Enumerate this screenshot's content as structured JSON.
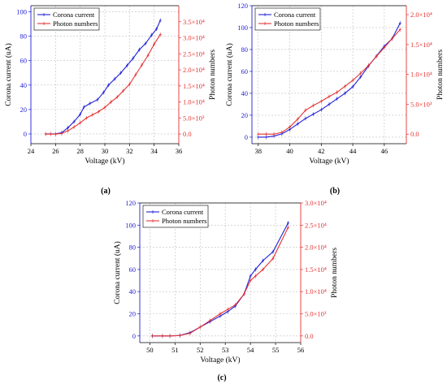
{
  "colors": {
    "current": "#1f1fd6",
    "photon": "#e53333",
    "grid": "#bfbfbf"
  },
  "chart_data": [
    {
      "type": "line",
      "caption": "(a)",
      "xlabel": "Voltage (kV)",
      "ylabel": "Corona current (uA)",
      "y2label": "Photon numbers",
      "xlim": [
        24,
        36
      ],
      "ylim": [
        -8,
        105
      ],
      "y2lim": [
        -3000,
        40000
      ],
      "xticks": [
        24,
        26,
        28,
        30,
        32,
        34,
        36
      ],
      "xtick_labels": [
        "24",
        "26",
        "28",
        "30",
        "32",
        "34",
        "36"
      ],
      "yticks": [
        0,
        20,
        40,
        60,
        80,
        100
      ],
      "ytick_labels": [
        "0",
        "20",
        "40",
        "60",
        "80",
        "100"
      ],
      "y2ticks": [
        0,
        5000,
        10000,
        15000,
        20000,
        25000,
        30000,
        35000
      ],
      "y2tick_labels": [
        "0.0",
        "5.0×10³",
        "1.0×10⁴",
        "1.5×10⁴",
        "2.0×10⁴",
        "2.5×10⁴",
        "3.0×10⁴",
        "3.5×10⁴"
      ],
      "grid": true,
      "legend": "top-left",
      "series": [
        {
          "name": "Corona current",
          "axis": "left",
          "x": [
            25.2,
            25.6,
            26.0,
            26.5,
            27.0,
            27.5,
            28.0,
            28.3,
            28.8,
            29.4,
            29.9,
            30.3,
            30.8,
            31.3,
            31.8,
            32.3,
            32.8,
            33.3,
            33.8,
            34.2,
            34.5
          ],
          "values": [
            0,
            0,
            0,
            1,
            5,
            10,
            16,
            22,
            25,
            28,
            34,
            40,
            45,
            50,
            56,
            62,
            69,
            74,
            81,
            86,
            93
          ]
        },
        {
          "name": "Photon numbers",
          "axis": "right",
          "x": [
            25.2,
            25.6,
            26.0,
            26.5,
            27.0,
            27.5,
            28.0,
            28.5,
            29.0,
            29.5,
            30.0,
            30.5,
            31.0,
            31.5,
            32.0,
            32.5,
            33.0,
            33.5,
            34.0,
            34.5
          ],
          "values": [
            0,
            0,
            0,
            200,
            1000,
            2200,
            3500,
            5000,
            6000,
            7000,
            8300,
            10000,
            11500,
            13500,
            15500,
            18500,
            21500,
            24500,
            28000,
            31000
          ]
        }
      ]
    },
    {
      "type": "line",
      "caption": "(b)",
      "xlabel": "Voltage (kV)",
      "ylabel": "Corona current (uA)",
      "y2label": "Photon numbers",
      "xlim": [
        37.6,
        47.4
      ],
      "ylim": [
        -6,
        120
      ],
      "y2lim": [
        -1600,
        21500
      ],
      "xticks": [
        38,
        40,
        42,
        44,
        46
      ],
      "xtick_labels": [
        "38",
        "40",
        "42",
        "44",
        "46"
      ],
      "yticks": [
        0,
        20,
        40,
        60,
        80,
        100,
        120
      ],
      "ytick_labels": [
        "0",
        "20",
        "40",
        "60",
        "80",
        "100",
        "120"
      ],
      "y2ticks": [
        0,
        5000,
        10000,
        15000,
        20000
      ],
      "y2tick_labels": [
        "0.0",
        "5.0×10³",
        "1.0×10⁴",
        "1.5×10⁴",
        "2.0×10⁴"
      ],
      "grid": true,
      "legend": "top-left",
      "series": [
        {
          "name": "Corona current",
          "axis": "left",
          "x": [
            38.0,
            38.5,
            39.0,
            39.5,
            40.0,
            40.5,
            41.0,
            41.5,
            42.0,
            42.5,
            43.0,
            43.5,
            44.0,
            44.5,
            45.0,
            45.5,
            46.0,
            46.5,
            47.0
          ],
          "values": [
            0,
            0,
            1,
            3,
            7,
            12,
            17,
            21,
            25,
            30,
            35,
            40,
            46,
            55,
            65,
            74,
            83,
            90,
            104
          ]
        },
        {
          "name": "Photon numbers",
          "axis": "right",
          "x": [
            38.0,
            38.5,
            39.0,
            39.5,
            40.0,
            40.5,
            41.0,
            41.5,
            42.0,
            42.5,
            43.0,
            43.5,
            44.0,
            44.5,
            45.0,
            45.5,
            46.0,
            46.5,
            47.0
          ],
          "values": [
            0,
            0,
            0,
            300,
            1200,
            2500,
            4000,
            4800,
            5500,
            6300,
            7000,
            8000,
            9000,
            10200,
            11500,
            13000,
            14500,
            16000,
            17500
          ]
        }
      ]
    },
    {
      "type": "line",
      "caption": "(c)",
      "xlabel": "Voltage (kV)",
      "ylabel": "Corona current (uA)",
      "y2label": "Photon numbers",
      "xlim": [
        49.6,
        56
      ],
      "ylim": [
        -6,
        120
      ],
      "y2lim": [
        -1500,
        30000
      ],
      "xticks": [
        50,
        51,
        52,
        53,
        54,
        55,
        56
      ],
      "xtick_labels": [
        "50",
        "51",
        "52",
        "53",
        "54",
        "55",
        "56"
      ],
      "yticks": [
        0,
        20,
        40,
        60,
        80,
        100,
        120
      ],
      "ytick_labels": [
        "0",
        "20",
        "40",
        "60",
        "80",
        "100",
        "120"
      ],
      "y2ticks": [
        0,
        5000,
        10000,
        15000,
        20000,
        25000,
        30000
      ],
      "y2tick_labels": [
        "0.0",
        "5.0×10³",
        "1.0×10⁴",
        "1.5×10⁴",
        "2.0×10⁴",
        "2.5×10⁴",
        "3.0×10⁴"
      ],
      "grid": true,
      "legend": "top-left",
      "series": [
        {
          "name": "Corona current",
          "axis": "left",
          "x": [
            50.1,
            50.5,
            50.8,
            51.2,
            51.6,
            52.0,
            52.4,
            52.8,
            53.1,
            53.4,
            53.75,
            54.0,
            54.2,
            54.5,
            54.9,
            55.5
          ],
          "values": [
            0,
            0,
            0,
            0.5,
            3,
            8,
            13,
            18,
            22,
            27,
            38,
            54,
            60,
            68,
            76,
            102
          ]
        },
        {
          "name": "Photon numbers",
          "axis": "right",
          "x": [
            50.1,
            50.5,
            50.8,
            51.2,
            51.6,
            52.0,
            52.4,
            52.8,
            53.1,
            53.4,
            53.75,
            54.0,
            54.2,
            54.5,
            54.9,
            55.5
          ],
          "values": [
            0,
            0,
            0,
            100,
            600,
            2000,
            3500,
            5000,
            6000,
            7000,
            9500,
            12500,
            13500,
            15000,
            17500,
            24500
          ]
        }
      ]
    }
  ]
}
